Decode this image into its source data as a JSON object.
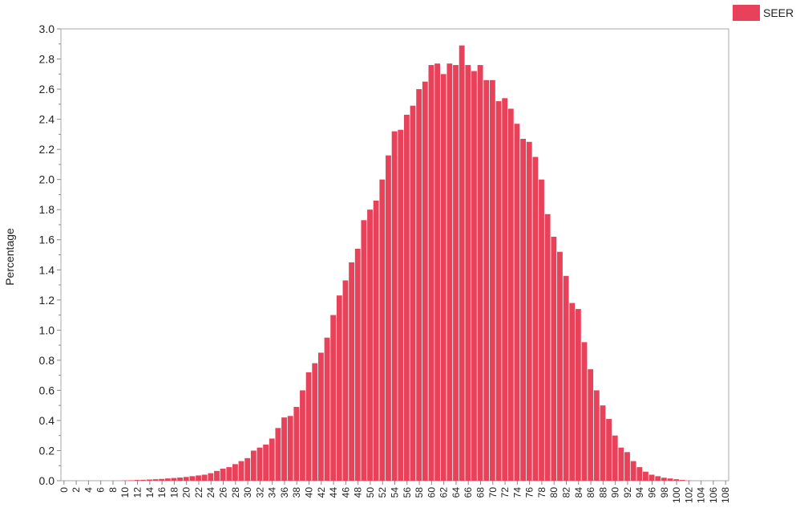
{
  "chart_data": {
    "type": "bar",
    "title": "",
    "xlabel": "",
    "ylabel": "Percentage",
    "ylim": [
      0,
      3.0
    ],
    "xlim": [
      0,
      109
    ],
    "yticks": [
      "0.0",
      "0.2",
      "0.4",
      "0.6",
      "0.8",
      "1.0",
      "1.2",
      "1.4",
      "1.6",
      "1.8",
      "2.0",
      "2.2",
      "2.4",
      "2.6",
      "2.8",
      "3.0"
    ],
    "xticks": [
      "0",
      "2",
      "4",
      "6",
      "8",
      "10",
      "12",
      "14",
      "16",
      "18",
      "20",
      "22",
      "24",
      "26",
      "28",
      "30",
      "32",
      "34",
      "36",
      "38",
      "40",
      "42",
      "44",
      "46",
      "48",
      "50",
      "52",
      "54",
      "56",
      "58",
      "60",
      "62",
      "64",
      "66",
      "68",
      "70",
      "72",
      "74",
      "76",
      "78",
      "80",
      "82",
      "84",
      "86",
      "88",
      "90",
      "92",
      "94",
      "96",
      "98",
      "100",
      "102",
      "104",
      "106",
      "108"
    ],
    "legend": {
      "position": "top-right",
      "entries": [
        "SEER"
      ]
    },
    "colors": {
      "bar": "#e8425a",
      "legend": "#e8425a",
      "axis": "#888888"
    },
    "grid": false,
    "series": [
      {
        "name": "SEER",
        "x": [
          0,
          1,
          2,
          3,
          4,
          5,
          6,
          7,
          8,
          9,
          10,
          11,
          12,
          13,
          14,
          15,
          16,
          17,
          18,
          19,
          20,
          21,
          22,
          23,
          24,
          25,
          26,
          27,
          28,
          29,
          30,
          31,
          32,
          33,
          34,
          35,
          36,
          37,
          38,
          39,
          40,
          41,
          42,
          43,
          44,
          45,
          46,
          47,
          48,
          49,
          50,
          51,
          52,
          53,
          54,
          55,
          56,
          57,
          58,
          59,
          60,
          61,
          62,
          63,
          64,
          65,
          66,
          67,
          68,
          69,
          70,
          71,
          72,
          73,
          74,
          75,
          76,
          77,
          78,
          79,
          80,
          81,
          82,
          83,
          84,
          85,
          86,
          87,
          88,
          89,
          90,
          91,
          92,
          93,
          94,
          95,
          96,
          97,
          98,
          99,
          100,
          101,
          102,
          103,
          104,
          105,
          106,
          107,
          108
        ],
        "values": [
          0.0,
          0.0,
          0.0,
          0.0,
          0.0,
          0.0,
          0.0,
          0.0,
          0.0,
          0.0,
          0.002,
          0.003,
          0.005,
          0.006,
          0.008,
          0.01,
          0.012,
          0.015,
          0.018,
          0.021,
          0.025,
          0.03,
          0.035,
          0.04,
          0.05,
          0.065,
          0.08,
          0.09,
          0.11,
          0.13,
          0.15,
          0.2,
          0.22,
          0.24,
          0.28,
          0.35,
          0.42,
          0.43,
          0.49,
          0.6,
          0.72,
          0.78,
          0.85,
          0.95,
          1.1,
          1.23,
          1.33,
          1.45,
          1.54,
          1.73,
          1.8,
          1.86,
          2.0,
          2.16,
          2.32,
          2.33,
          2.43,
          2.49,
          2.6,
          2.65,
          2.76,
          2.77,
          2.7,
          2.77,
          2.76,
          2.89,
          2.76,
          2.72,
          2.76,
          2.66,
          2.66,
          2.52,
          2.54,
          2.47,
          2.37,
          2.27,
          2.25,
          2.15,
          2.0,
          1.77,
          1.62,
          1.52,
          1.36,
          1.18,
          1.14,
          0.92,
          0.74,
          0.6,
          0.5,
          0.41,
          0.3,
          0.22,
          0.19,
          0.13,
          0.09,
          0.06,
          0.04,
          0.03,
          0.02,
          0.015,
          0.01,
          0.005,
          0.002,
          0.0,
          0.0,
          0.0,
          0.0,
          0.0,
          0.0
        ]
      }
    ]
  }
}
